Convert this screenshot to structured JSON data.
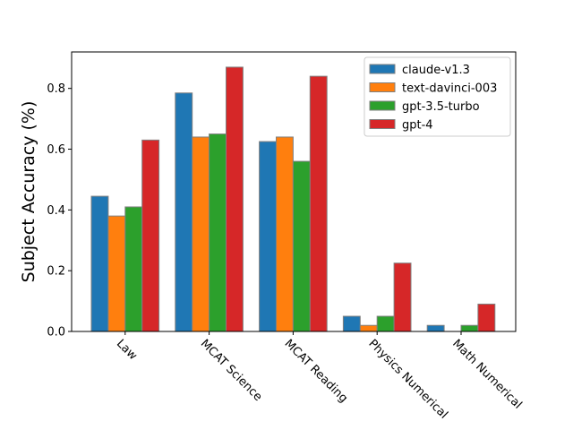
{
  "chart_data": {
    "type": "bar",
    "title": "",
    "xlabel": "",
    "ylabel": "Subject Accuracy (%)",
    "ylim": [
      0,
      0.92
    ],
    "yticks": [
      "0.0",
      "0.2",
      "0.4",
      "0.6",
      "0.8"
    ],
    "categories": [
      "Law",
      "MCAT Science",
      "MCAT Reading",
      "Physics Numerical",
      "Math Numerical"
    ],
    "series": [
      {
        "name": "claude-v1.3",
        "color": "#1f77b4",
        "values": [
          0.445,
          0.785,
          0.625,
          0.05,
          0.02
        ]
      },
      {
        "name": "text-davinci-003",
        "color": "#ff7f0e",
        "values": [
          0.38,
          0.64,
          0.64,
          0.02,
          0.0
        ]
      },
      {
        "name": "gpt-3.5-turbo",
        "color": "#2ca02c",
        "values": [
          0.41,
          0.65,
          0.56,
          0.05,
          0.02
        ]
      },
      {
        "name": "gpt-4",
        "color": "#d62728",
        "values": [
          0.63,
          0.87,
          0.84,
          0.225,
          0.09
        ]
      }
    ],
    "grid": false,
    "legend_position": "top-right",
    "bar_edge_color": "#808080"
  }
}
